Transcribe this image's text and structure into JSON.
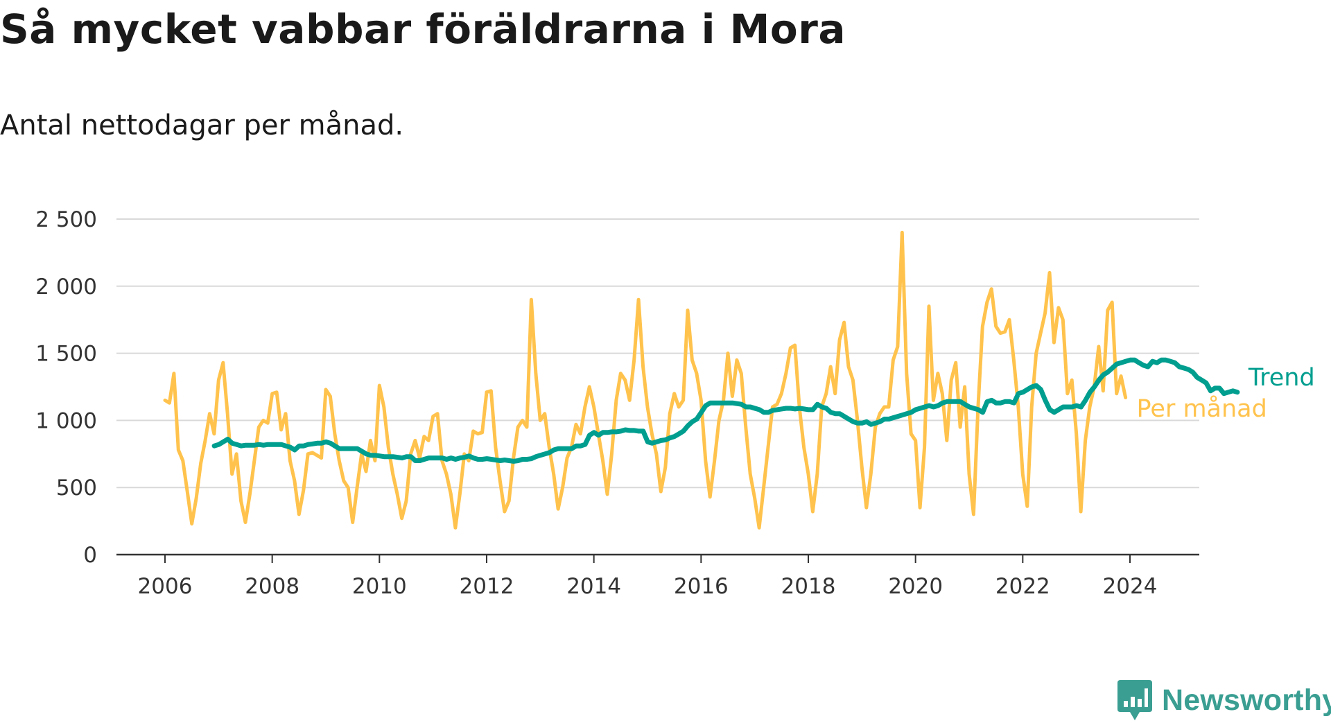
{
  "header": {
    "title": "Så mycket vabbar föräldrarna i Mora",
    "subtitle": "Antal nettodagar per månad."
  },
  "brand": {
    "name": "Newsworthy",
    "icon": "newsworthy-logo-icon"
  },
  "colors": {
    "trend": "#009e8f",
    "monthly": "#ffc34d",
    "grid": "#d9d9d9",
    "axis": "#333333",
    "brand": "#3a9e92"
  },
  "chart_data": {
    "type": "line",
    "title": "Så mycket vabbar föräldrarna i Mora",
    "subtitle": "Antal nettodagar per månad.",
    "ylim": [
      0,
      2500
    ],
    "yticks": [
      0,
      500,
      1000,
      1500,
      2000,
      2500
    ],
    "ytick_labels": [
      "0",
      "500",
      "1 000",
      "1 500",
      "2 000",
      "2 500"
    ],
    "xlim": [
      2006,
      2025.25
    ],
    "xticks": [
      2006,
      2008,
      2010,
      2012,
      2014,
      2016,
      2018,
      2020,
      2022,
      2024
    ],
    "xtick_labels": [
      "2006",
      "2008",
      "2010",
      "2012",
      "2014",
      "2016",
      "2018",
      "2020",
      "2022",
      "2024"
    ],
    "grid": true,
    "legend": "right-end-labels",
    "series": [
      {
        "name": "Per månad",
        "color": "#ffc34d",
        "start": 2006.0,
        "step_months": 1,
        "values": [
          1150,
          1130,
          1350,
          780,
          700,
          470,
          230,
          420,
          680,
          850,
          1050,
          900,
          1300,
          1430,
          1050,
          600,
          750,
          400,
          240,
          450,
          700,
          950,
          1000,
          980,
          1200,
          1210,
          930,
          1050,
          700,
          550,
          300,
          480,
          750,
          760,
          740,
          720,
          1230,
          1180,
          900,
          700,
          550,
          500,
          240,
          500,
          750,
          620,
          850,
          700,
          1260,
          1100,
          800,
          600,
          450,
          270,
          400,
          750,
          850,
          720,
          880,
          850,
          1030,
          1050,
          700,
          600,
          450,
          200,
          450,
          750,
          700,
          920,
          900,
          910,
          1210,
          1220,
          800,
          550,
          320,
          400,
          720,
          950,
          1000,
          950,
          1900,
          1350,
          1000,
          1050,
          800,
          600,
          340,
          500,
          720,
          800,
          970,
          900,
          1100,
          1250,
          1100,
          900,
          700,
          450,
          750,
          1150,
          1350,
          1300,
          1150,
          1450,
          1900,
          1400,
          1100,
          900,
          750,
          470,
          650,
          1050,
          1200,
          1100,
          1150,
          1820,
          1450,
          1350,
          1150,
          700,
          430,
          700,
          1000,
          1150,
          1500,
          1180,
          1450,
          1350,
          950,
          600,
          420,
          200,
          500,
          800,
          1100,
          1120,
          1200,
          1350,
          1540,
          1560,
          1100,
          800,
          600,
          320,
          600,
          1100,
          1200,
          1400,
          1200,
          1600,
          1730,
          1400,
          1300,
          1000,
          650,
          350,
          600,
          950,
          1050,
          1100,
          1100,
          1450,
          1550,
          2400,
          1350,
          900,
          850,
          350,
          800,
          1850,
          1150,
          1350,
          1200,
          850,
          1300,
          1430,
          950,
          1250,
          600,
          300,
          1100,
          1700,
          1880,
          1980,
          1700,
          1650,
          1660,
          1750,
          1450,
          1100,
          600,
          360,
          1100,
          1500,
          1650,
          1800,
          2100,
          1580,
          1840,
          1750,
          1200,
          1300,
          900,
          320,
          850,
          1100,
          1250,
          1550,
          1220,
          1820,
          1880,
          1200,
          1330,
          1170
        ]
      },
      {
        "name": "Trend",
        "color": "#009e8f",
        "start": 2006.92,
        "step_months": 1,
        "values": [
          810,
          820,
          840,
          860,
          830,
          820,
          810,
          815,
          815,
          815,
          820,
          815,
          820,
          820,
          820,
          820,
          810,
          800,
          780,
          810,
          810,
          820,
          825,
          830,
          830,
          840,
          830,
          810,
          790,
          790,
          790,
          790,
          790,
          770,
          750,
          740,
          740,
          735,
          730,
          730,
          730,
          725,
          720,
          730,
          730,
          700,
          700,
          710,
          720,
          720,
          720,
          720,
          710,
          720,
          710,
          720,
          725,
          735,
          720,
          710,
          710,
          715,
          710,
          705,
          700,
          705,
          700,
          695,
          700,
          710,
          710,
          715,
          730,
          740,
          750,
          760,
          780,
          790,
          790,
          790,
          790,
          810,
          810,
          820,
          890,
          910,
          890,
          910,
          910,
          915,
          915,
          920,
          930,
          925,
          925,
          920,
          920,
          840,
          830,
          840,
          850,
          855,
          870,
          880,
          900,
          920,
          960,
          990,
          1010,
          1060,
          1110,
          1130,
          1130,
          1130,
          1130,
          1130,
          1130,
          1125,
          1120,
          1100,
          1100,
          1090,
          1080,
          1060,
          1060,
          1075,
          1080,
          1085,
          1090,
          1090,
          1085,
          1090,
          1085,
          1080,
          1080,
          1120,
          1100,
          1090,
          1060,
          1050,
          1050,
          1030,
          1010,
          990,
          980,
          980,
          990,
          970,
          980,
          990,
          1010,
          1010,
          1020,
          1030,
          1040,
          1050,
          1060,
          1080,
          1090,
          1100,
          1110,
          1100,
          1110,
          1130,
          1140,
          1140,
          1140,
          1140,
          1120,
          1100,
          1090,
          1080,
          1060,
          1140,
          1150,
          1130,
          1130,
          1140,
          1140,
          1130,
          1200,
          1210,
          1230,
          1250,
          1260,
          1230,
          1150,
          1080,
          1060,
          1080,
          1100,
          1100,
          1100,
          1110,
          1100,
          1150,
          1210,
          1250,
          1300,
          1340,
          1360,
          1390,
          1420,
          1430,
          1440,
          1450,
          1450,
          1430,
          1410,
          1400,
          1440,
          1430,
          1450,
          1450,
          1440,
          1430,
          1400,
          1390,
          1380,
          1360,
          1320,
          1300,
          1280,
          1220,
          1240,
          1240,
          1200,
          1210,
          1220,
          1210
        ]
      }
    ]
  }
}
